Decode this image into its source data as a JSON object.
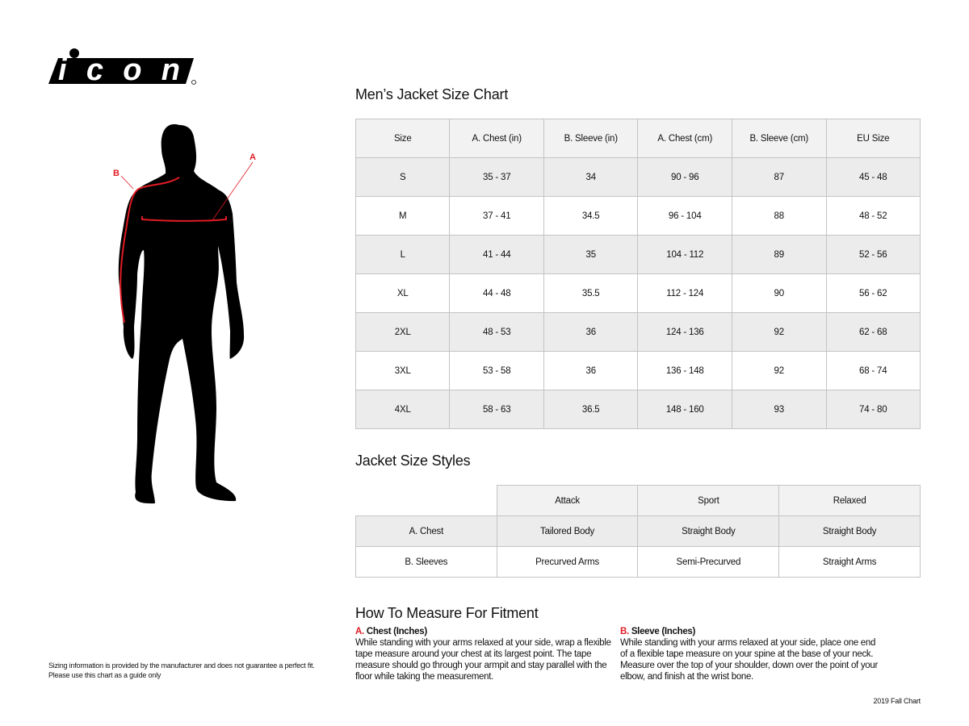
{
  "brand": {
    "logo_text": "icon",
    "accent": "#e01b24"
  },
  "figure": {
    "label_a": "A",
    "label_b": "B"
  },
  "size_chart": {
    "title": "Men’s Jacket Size Chart",
    "headers": [
      "Size",
      "A. Chest (in)",
      "B. Sleeve (in)",
      "A. Chest (cm)",
      "B. Sleeve (cm)",
      "EU Size"
    ],
    "rows": [
      [
        "S",
        "35 - 37",
        "34",
        "90 - 96",
        "87",
        "45 - 48"
      ],
      [
        "M",
        "37 - 41",
        "34.5",
        "96 - 104",
        "88",
        "48 - 52"
      ],
      [
        "L",
        "41 - 44",
        "35",
        "104 - 112",
        "89",
        "52 - 56"
      ],
      [
        "XL",
        "44 - 48",
        "35.5",
        "112 - 124",
        "90",
        "56 - 62"
      ],
      [
        "2XL",
        "48 - 53",
        "36",
        "124 - 136",
        "92",
        "62 - 68"
      ],
      [
        "3XL",
        "53 - 58",
        "36",
        "136 - 148",
        "92",
        "68 - 74"
      ],
      [
        "4XL",
        "58 - 63",
        "36.5",
        "148 - 160",
        "93",
        "74 - 80"
      ]
    ]
  },
  "styles": {
    "title": "Jacket Size Styles",
    "headers": [
      "",
      "Attack",
      "Sport",
      "Relaxed"
    ],
    "rows": [
      [
        "A. Chest",
        "Tailored Body",
        "Straight Body",
        "Straight Body"
      ],
      [
        "B. Sleeves",
        "Precurved Arms",
        "Semi-Precurved",
        "Straight Arms"
      ]
    ]
  },
  "measure": {
    "title": "How To Measure For Fitment",
    "a": {
      "letter": "A.",
      "heading": "Chest (Inches)",
      "text": "While standing with your arms relaxed at your side, wrap a flexible tape measure around your chest at its largest point. The tape measure should go through your armpit and stay parallel with the floor while taking the measurement."
    },
    "b": {
      "letter": "B.",
      "heading": "Sleeve (Inches)",
      "text": "While standing with your arms relaxed at your side, place one end of a flexible tape measure on your spine at the base of your neck. Measure over the top of your shoulder, down over the point of your elbow, and finish at the wrist bone."
    }
  },
  "disclaimer": {
    "line1": "Sizing information is provided by the manufacturer and does not guarantee a perfect fit.",
    "line2": "Please use this chart as a guide only"
  },
  "footer": "2019 Fall Chart"
}
